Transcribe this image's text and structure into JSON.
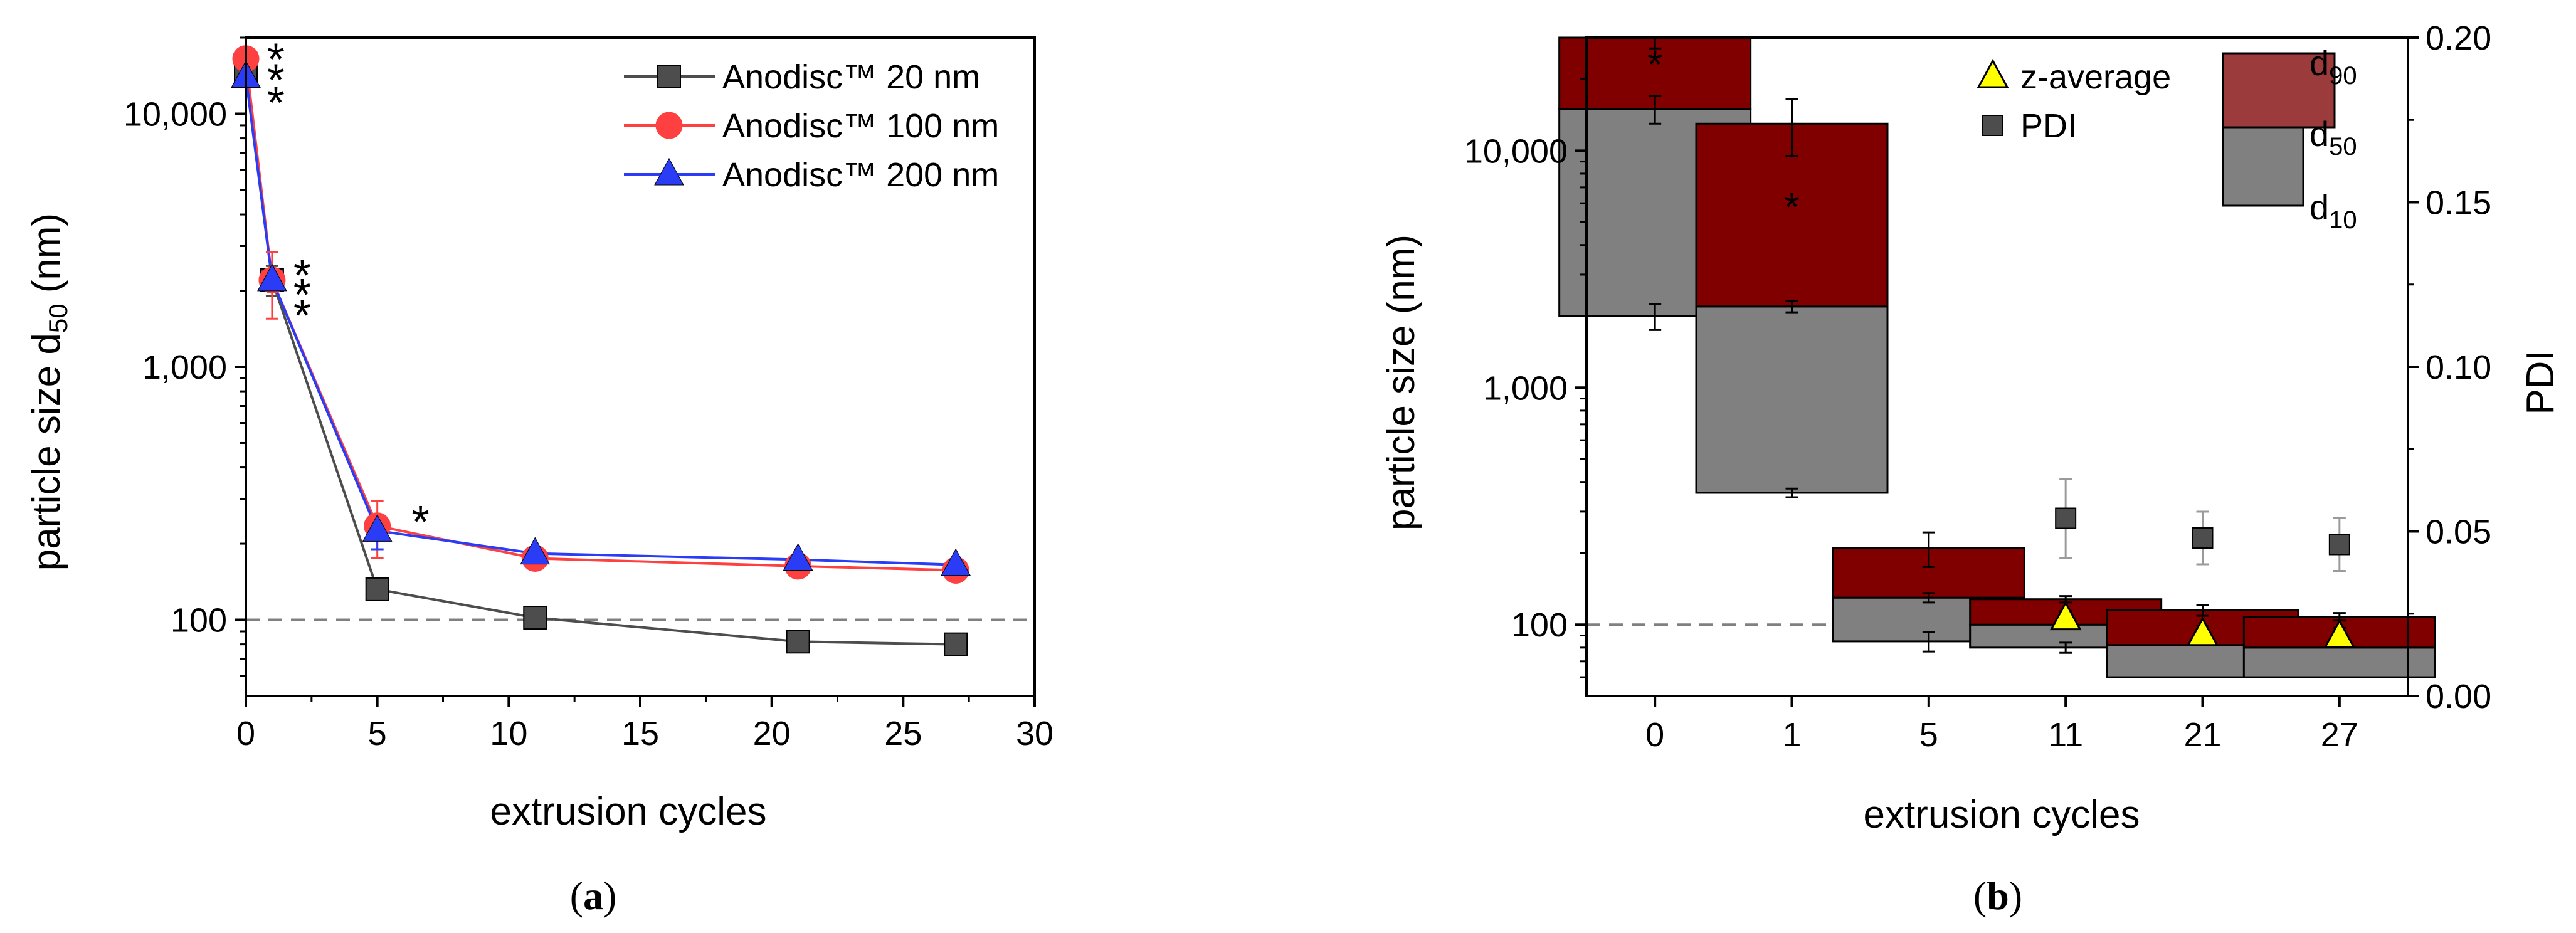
{
  "colors": {
    "s20": "#4d4d4d",
    "s100": "#ff4040",
    "s200": "#2a3cf5",
    "d90": "#800000",
    "d50": "#808080",
    "zavg": "#ffff00",
    "pdi": "#4d4d4d",
    "star_red": "#e8262c",
    "star_black": "#333333",
    "star_blue": "#2a3cf5",
    "refline": "#808080"
  },
  "captions": {
    "a": "a",
    "b": "b"
  },
  "chart_data": [
    {
      "type": "line",
      "panel": "a",
      "xlabel": "extrusion cycles",
      "ylabel_main": "particle size d",
      "ylabel_sub": "50",
      "ylabel_unit": " (nm)",
      "yscale": "log",
      "xlim": [
        0,
        30
      ],
      "ylim": [
        50,
        20000
      ],
      "xticks": [
        0,
        5,
        10,
        15,
        20,
        25,
        30
      ],
      "xtick_labels": [
        "0",
        "5",
        "10",
        "15",
        "20",
        "25",
        "30"
      ],
      "yticks": [
        100,
        1000,
        10000
      ],
      "ytick_labels": [
        "100",
        "1,000",
        "10,000"
      ],
      "reference_line_y": 100,
      "legend_position": "top-right",
      "series": [
        {
          "name": "Anodisc™ 20 nm",
          "marker": "square",
          "x": [
            0,
            1,
            5,
            11,
            21,
            27
          ],
          "y": [
            14500,
            2200,
            132,
            102,
            82,
            80
          ],
          "err": [
            1500,
            300,
            0,
            0,
            0,
            0
          ]
        },
        {
          "name": "Anodisc™ 100 nm",
          "marker": "circle",
          "x": [
            0,
            1,
            5,
            11,
            21,
            27
          ],
          "y": [
            16500,
            2200,
            235,
            175,
            163,
            157
          ],
          "err": [
            1500,
            650,
            60,
            0,
            0,
            0
          ]
        },
        {
          "name": "Anodisc™ 200 nm",
          "marker": "triangle",
          "x": [
            0,
            1,
            5,
            11,
            21,
            27
          ],
          "y": [
            14000,
            2200,
            225,
            183,
            173,
            165
          ],
          "err": [
            1200,
            200,
            35,
            0,
            0,
            0
          ]
        }
      ],
      "annotations": [
        {
          "text": "*",
          "x": 1,
          "y": 17500,
          "color": "star_red"
        },
        {
          "text": "*",
          "x": 1,
          "y": 14500,
          "color": "star_black"
        },
        {
          "text": "*",
          "x": 1,
          "y": 11800,
          "color": "star_blue"
        },
        {
          "text": "*",
          "x": 2,
          "y": 2450,
          "color": "star_red"
        },
        {
          "text": "*",
          "x": 2,
          "y": 2050,
          "color": "star_black"
        },
        {
          "text": "*",
          "x": 2,
          "y": 1700,
          "color": "star_blue"
        },
        {
          "text": "*",
          "x": 6.5,
          "y": 260,
          "color": "star_blue"
        }
      ]
    },
    {
      "type": "bar",
      "panel": "b",
      "xlabel": "extrusion cycles",
      "ylabel": "particle size (nm)",
      "ylabel_right": "PDI",
      "yscale": "log",
      "ylim": [
        50,
        30000
      ],
      "yticks": [
        100,
        1000,
        10000
      ],
      "ytick_labels": [
        "100",
        "1,000",
        "10,000"
      ],
      "y2lim": [
        0,
        0.2
      ],
      "y2ticks": [
        0,
        0.05,
        0.1,
        0.15,
        0.2
      ],
      "y2tick_labels": [
        "0.00",
        "0.05",
        "0.10",
        "0.15",
        "0.20"
      ],
      "categories": [
        "0",
        "1",
        "5",
        "11",
        "21",
        "27"
      ],
      "d10": [
        2000,
        360,
        85,
        80,
        60,
        60
      ],
      "d50": [
        15000,
        2200,
        130,
        100,
        82,
        80
      ],
      "d90": [
        30000,
        13000,
        210,
        128,
        115,
        108
      ],
      "d10_err": [
        250,
        15,
        8,
        4,
        0,
        0
      ],
      "d50_err": [
        2000,
        120,
        6,
        4,
        0,
        0
      ],
      "d90_err": [
        3000,
        3500,
        35,
        4,
        6,
        4
      ],
      "z_average": [
        null,
        null,
        null,
        106,
        91,
        89
      ],
      "z_average_err": [
        null,
        null,
        null,
        8,
        8,
        8
      ],
      "star_marker": [
        24000,
        6000,
        null,
        null,
        null,
        null
      ],
      "pdi": [
        null,
        null,
        null,
        0.054,
        0.048,
        0.046
      ],
      "pdi_err": [
        null,
        null,
        null,
        0.012,
        0.008,
        0.008
      ],
      "reference_line_y": 100,
      "legend": [
        {
          "label": "z-average",
          "marker": "triangle"
        },
        {
          "label": "PDI",
          "marker": "square"
        }
      ],
      "bar_legend": {
        "d90_main": "d",
        "d90_sub": "90",
        "d50_main": "d",
        "d50_sub": "50",
        "d10_main": "d",
        "d10_sub": "10"
      }
    }
  ]
}
